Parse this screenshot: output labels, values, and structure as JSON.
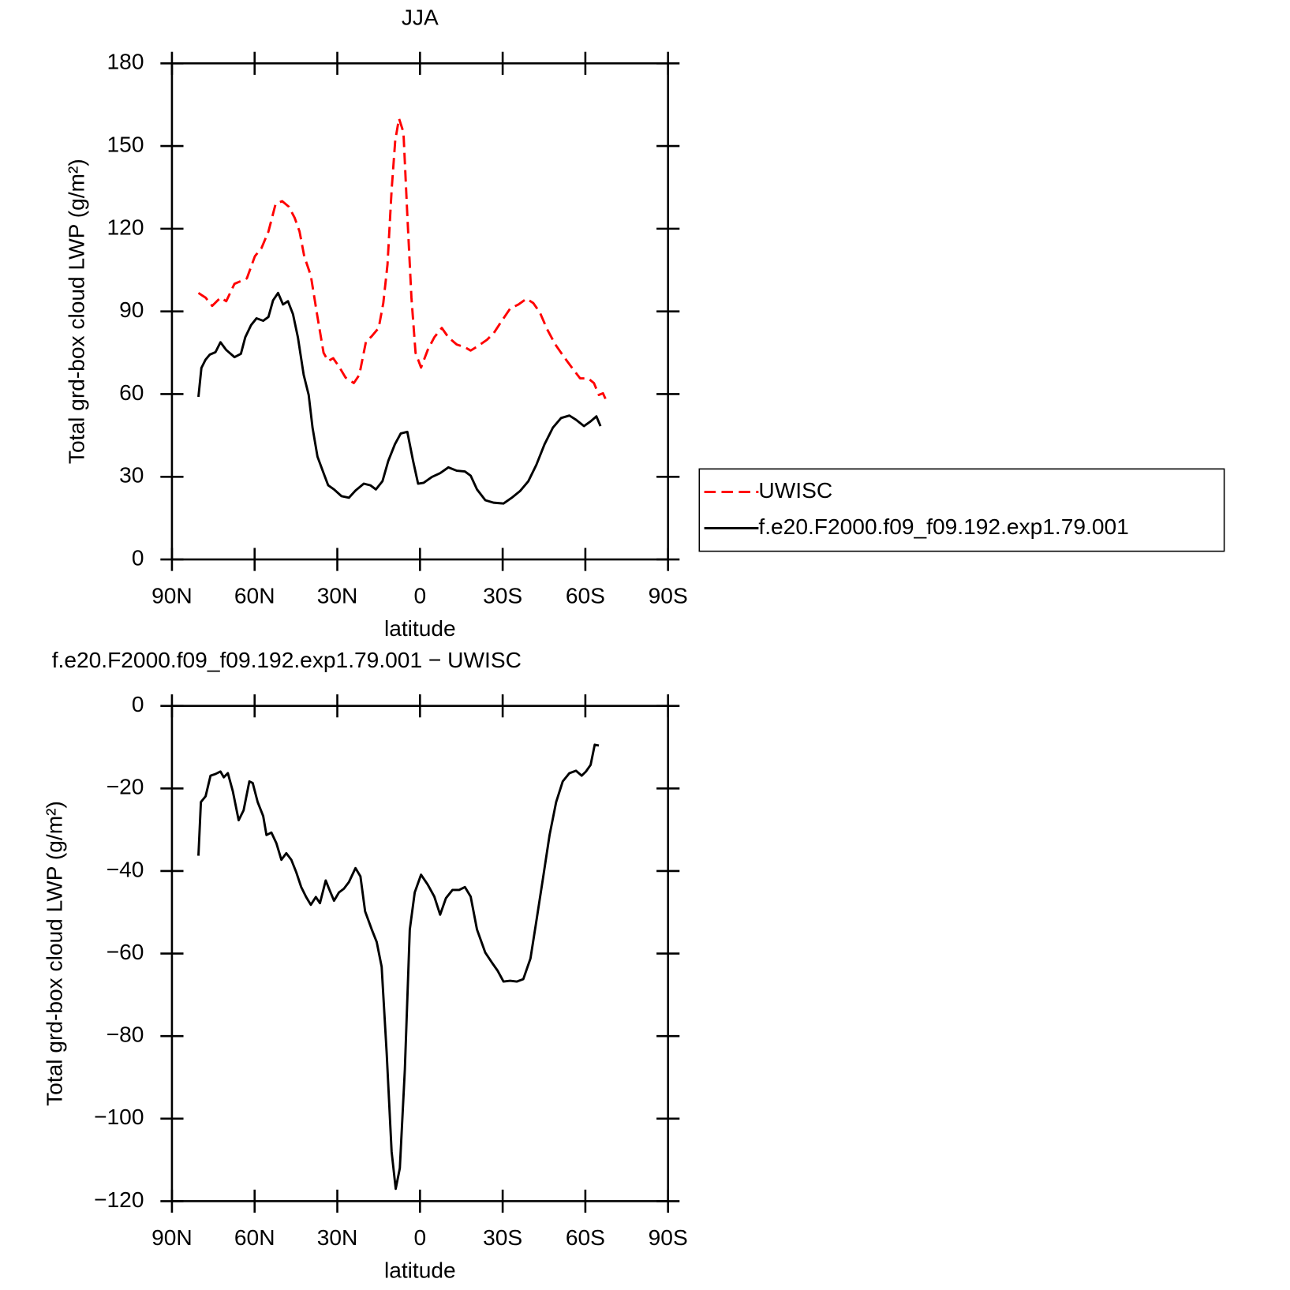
{
  "chart_data": [
    {
      "type": "line",
      "title": "JJA",
      "xlabel": "latitude",
      "ylabel": "Total grd-box cloud LWP (g/m²)",
      "xlim": [
        90,
        -90
      ],
      "xticks": [
        {
          "value": 90,
          "label": "90N"
        },
        {
          "value": 60,
          "label": "60N"
        },
        {
          "value": 30,
          "label": "30N"
        },
        0,
        {
          "value": -30,
          "label": "30S"
        },
        {
          "value": -60,
          "label": "60S"
        },
        {
          "value": -90,
          "label": "90S"
        }
      ],
      "ylim": [
        0,
        180
      ],
      "yticks": [
        0,
        30,
        60,
        90,
        120,
        150,
        180
      ],
      "legend": "right",
      "series": [
        {
          "name": "UWISC",
          "color": "#ff0000",
          "dash": "dashed",
          "x": [
            80.4,
            77.8,
            75.4,
            72.4,
            70.3,
            67.3,
            65,
            62.8,
            59.9,
            57.5,
            55,
            52.4,
            50,
            47.6,
            45.5,
            43.7,
            42,
            39.6,
            37.2,
            35,
            33.3,
            31.5,
            29.4,
            27,
            24,
            22,
            19.6,
            17.5,
            15,
            13.3,
            11.8,
            10.3,
            9,
            7.6,
            6,
            4.6,
            3.1,
            1.6,
            -0.4,
            -2.8,
            -5.2,
            -7.9,
            -10.3,
            -13.3,
            -16.3,
            -18.4,
            -21.3,
            -24.3,
            -26.7,
            -29.7,
            -32.7,
            -35.7,
            -38.7,
            -41.1,
            -43.5,
            -46.1,
            -49.1,
            -52.1,
            -55.1,
            -58.1,
            -61,
            -63.1,
            -64.9,
            -66.4,
            -67.6
          ],
          "values": [
            96.7,
            95,
            92,
            95,
            93.7,
            100,
            101,
            102,
            110,
            113,
            119,
            129,
            130,
            128,
            124,
            119,
            110,
            103,
            88,
            75,
            72,
            73,
            70,
            66,
            64,
            67,
            79,
            81,
            84,
            93,
            107,
            134,
            152,
            160,
            155,
            125,
            95,
            75,
            69.6,
            76,
            80.6,
            84,
            80.6,
            78,
            77,
            75.8,
            77.6,
            79.7,
            82,
            86.6,
            91,
            92.5,
            94.6,
            93,
            89.6,
            83.6,
            78,
            73.7,
            69.6,
            65.7,
            65.7,
            64,
            59.7,
            60.3,
            57.6
          ]
        },
        {
          "name": "f.e20.F2000.f09_f09.192.exp1.79.001",
          "color": "#000000",
          "dash": "solid",
          "x": [
            80.4,
            79.3,
            77.8,
            76.3,
            74.2,
            72.4,
            70.3,
            67.3,
            65,
            63.4,
            61.3,
            59.3,
            56.9,
            55,
            53.3,
            51.5,
            49.7,
            47.9,
            46.1,
            44.3,
            42.2,
            40.4,
            39,
            37.2,
            35,
            33.3,
            31.2,
            28.5,
            25.8,
            23.4,
            20.4,
            18,
            16,
            13.6,
            11.5,
            9.1,
            7,
            4.6,
            2.5,
            0.7,
            -1.3,
            -4.3,
            -7.3,
            -10.3,
            -13.3,
            -16.3,
            -18.4,
            -20.7,
            -23.7,
            -26.7,
            -30.3,
            -33.3,
            -36.3,
            -39.3,
            -42.2,
            -45.2,
            -48.2,
            -51.2,
            -54.2,
            -56.6,
            -59.5,
            -61.9,
            -64,
            -65.5
          ],
          "values": [
            59,
            69.5,
            72.5,
            74.3,
            75.2,
            78.8,
            76,
            73.4,
            74.6,
            80.6,
            85,
            87.5,
            86.6,
            88,
            94,
            96.7,
            92.5,
            93.7,
            89,
            80.6,
            67,
            59.7,
            47.8,
            37.3,
            31.3,
            26.9,
            25.4,
            23,
            22.4,
            25,
            27.5,
            26.9,
            25.4,
            28.4,
            35.8,
            41.8,
            45.7,
            46.3,
            35.8,
            27.5,
            27.8,
            29.9,
            31.3,
            33.4,
            32.2,
            31.9,
            30.4,
            25.4,
            21.5,
            20.6,
            20.3,
            22.4,
            24.8,
            28.4,
            34.3,
            41.8,
            47.8,
            51.3,
            52.2,
            50.7,
            48.4,
            50.1,
            51.9,
            48.4
          ]
        }
      ]
    },
    {
      "type": "line",
      "title": "f.e20.F2000.f09_f09.192.exp1.79.001 − UWISC",
      "xlabel": "latitude",
      "ylabel": "Total grd-box cloud LWP (g/m²)",
      "xlim": [
        90,
        -90
      ],
      "xticks": [
        {
          "value": 90,
          "label": "90N"
        },
        {
          "value": 60,
          "label": "60N"
        },
        {
          "value": 30,
          "label": "30N"
        },
        0,
        {
          "value": -30,
          "label": "30S"
        },
        {
          "value": -60,
          "label": "60S"
        },
        {
          "value": -90,
          "label": "90S"
        }
      ],
      "ylim": [
        -120,
        0
      ],
      "yticks": [
        {
          "value": -120,
          "label": "−120"
        },
        {
          "value": -100,
          "label": "−100"
        },
        {
          "value": -80,
          "label": "−80"
        },
        {
          "value": -60,
          "label": "−60"
        },
        {
          "value": -40,
          "label": "−40"
        },
        {
          "value": -20,
          "label": "−20"
        },
        0
      ],
      "series": [
        {
          "color": "#000000",
          "dash": "solid",
          "x": [
            80.4,
            79.5,
            77.8,
            76,
            74.2,
            72.4,
            71.2,
            69.7,
            67.9,
            65.8,
            64,
            61.9,
            60.7,
            58.9,
            56.9,
            55.7,
            53.9,
            52.1,
            50.3,
            48.5,
            46.7,
            44.9,
            43.1,
            41.3,
            39.6,
            37.8,
            36.3,
            34.2,
            33,
            31.2,
            29.4,
            27.6,
            25.8,
            23.4,
            21.6,
            19.9,
            17.5,
            15.7,
            13.9,
            12.1,
            10.3,
            8.8,
            7.3,
            5.5,
            3.7,
            1.9,
            -0.4,
            -2.8,
            -5.2,
            -7.3,
            -9.4,
            -11.8,
            -14.2,
            -16.3,
            -18.4,
            -20.7,
            -23.7,
            -26.1,
            -28.2,
            -30.3,
            -32.7,
            -35.1,
            -37.5,
            -40.1,
            -42.2,
            -44.6,
            -47,
            -49.4,
            -51.8,
            -54.2,
            -56.6,
            -58.7,
            -60.2,
            -61.9,
            -63.4,
            -64.9
          ],
          "values": [
            -36.3,
            -23.3,
            -21.9,
            -16.9,
            -16.5,
            -15.9,
            -17.3,
            -16.3,
            -20.7,
            -27.7,
            -25.3,
            -18.3,
            -18.7,
            -23.3,
            -26.7,
            -31.3,
            -30.7,
            -33.3,
            -37.3,
            -35.7,
            -37.3,
            -40.3,
            -43.9,
            -46.3,
            -48.2,
            -46.3,
            -47.8,
            -42.3,
            -44.3,
            -47.2,
            -45.2,
            -44.3,
            -42.7,
            -39.3,
            -41.3,
            -49.8,
            -54.2,
            -57.2,
            -63.2,
            -84.1,
            -108,
            -117,
            -112,
            -88.1,
            -54.2,
            -45.2,
            -40.9,
            -43.3,
            -46.2,
            -50.6,
            -46.6,
            -44.6,
            -44.6,
            -43.9,
            -46.2,
            -54.2,
            -59.8,
            -62.2,
            -64.2,
            -66.8,
            -66.6,
            -66.8,
            -66.2,
            -61.2,
            -52.2,
            -41.9,
            -31.3,
            -23.3,
            -18.3,
            -16.3,
            -15.7,
            -16.9,
            -15.9,
            -14.3,
            -9.4,
            -9.6
          ]
        }
      ]
    }
  ]
}
